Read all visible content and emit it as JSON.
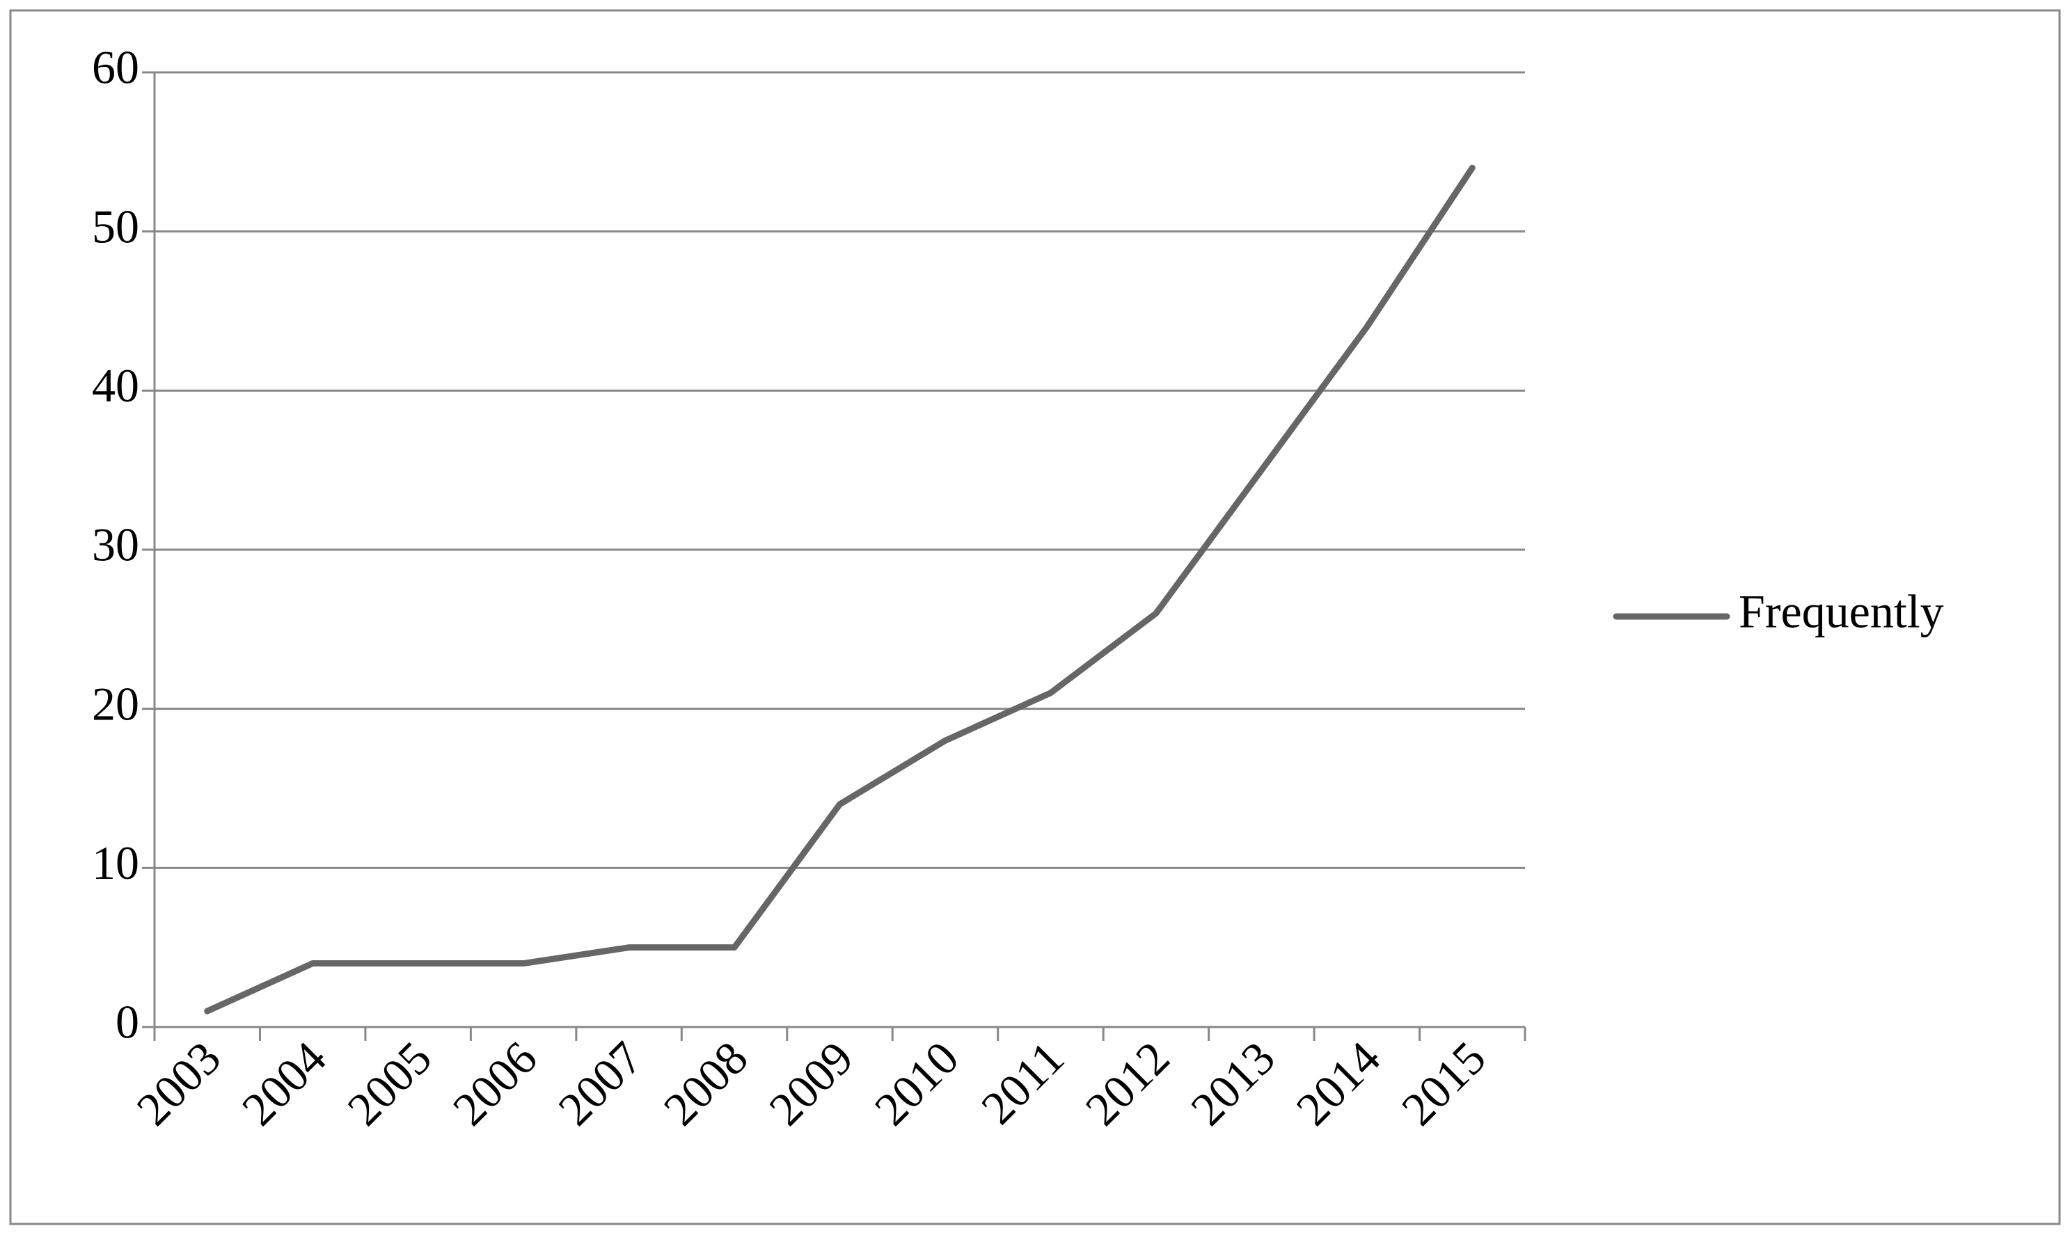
{
  "chart_data": {
    "type": "line",
    "categories": [
      "2003",
      "2004",
      "2005",
      "2006",
      "2007",
      "2008",
      "2009",
      "2010",
      "2011",
      "2012",
      "2013",
      "2014",
      "2015"
    ],
    "series": [
      {
        "name": "Frequently",
        "color": "#666666",
        "values": [
          1,
          4,
          4,
          4,
          5,
          5,
          14,
          18,
          21,
          26,
          35,
          44,
          54
        ]
      }
    ],
    "ylim": [
      0,
      60
    ],
    "yticks": [
      0,
      10,
      20,
      30,
      40,
      50,
      60
    ],
    "grid": true,
    "legend": "right"
  }
}
